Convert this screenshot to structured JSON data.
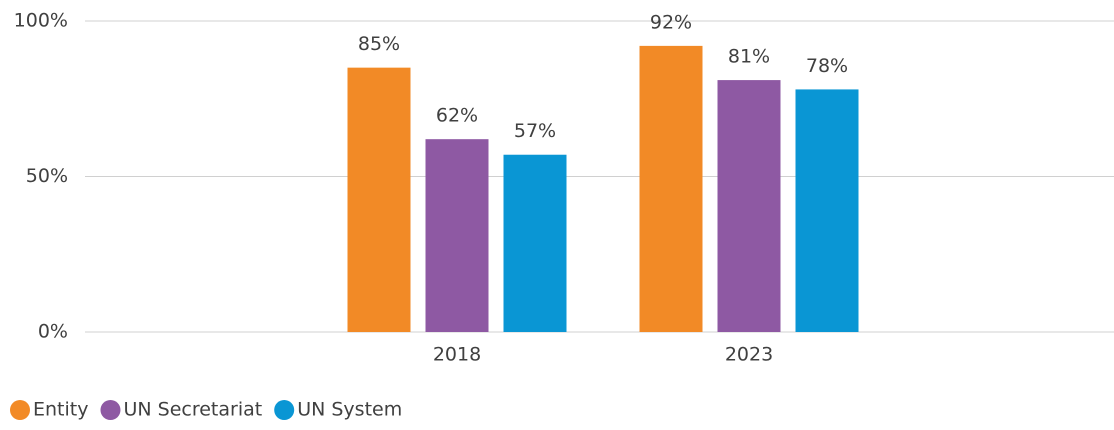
{
  "chart_data": {
    "type": "bar",
    "categories": [
      "2018",
      "2023"
    ],
    "series": [
      {
        "name": "Entity",
        "color": "#f28a26",
        "values": [
          85,
          92
        ],
        "value_labels": [
          "85%",
          "92%"
        ]
      },
      {
        "name": "UN Secretariat",
        "color": "#8e59a3",
        "values": [
          62,
          81
        ],
        "value_labels": [
          "62%",
          "81%"
        ]
      },
      {
        "name": "UN System",
        "color": "#0a96d4",
        "values": [
          57,
          78
        ],
        "value_labels": [
          "57%",
          "78%"
        ]
      }
    ],
    "ylim": [
      0,
      100
    ],
    "yticks": [
      {
        "value": 0,
        "label": "0%"
      },
      {
        "value": 50,
        "label": "50%"
      },
      {
        "value": 100,
        "label": "100%"
      }
    ],
    "grid": true,
    "legend": "bottom-left"
  }
}
